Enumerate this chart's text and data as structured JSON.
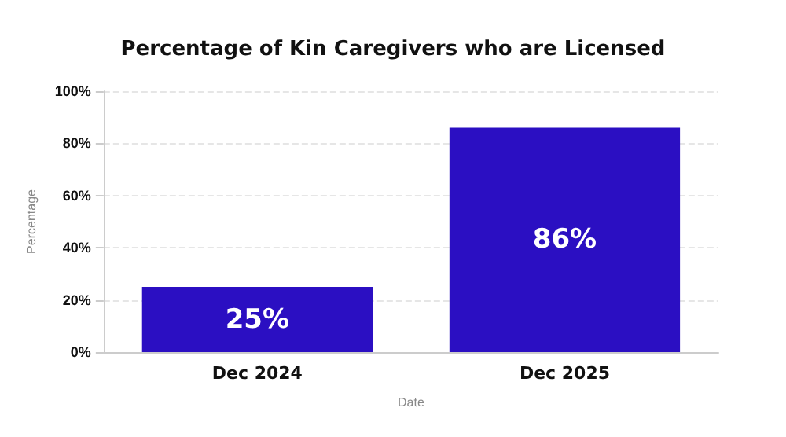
{
  "chart_data": {
    "type": "bar",
    "title": "Percentage of Kin Caregivers who are Licensed",
    "xlabel": "Date",
    "ylabel": "Percentage",
    "categories": [
      "Dec 2024",
      "Dec 2025"
    ],
    "values": [
      25,
      86
    ],
    "value_labels": [
      "25%",
      "86%"
    ],
    "color": "#2b0fc2",
    "ylim": [
      0,
      100
    ],
    "yticks": [
      {
        "value": 0,
        "label": "0%"
      },
      {
        "value": 20,
        "label": "20%"
      },
      {
        "value": 40,
        "label": "40%"
      },
      {
        "value": 60,
        "label": "60%"
      },
      {
        "value": 80,
        "label": "80%"
      },
      {
        "value": 100,
        "label": "100%"
      }
    ],
    "grid": "y"
  }
}
